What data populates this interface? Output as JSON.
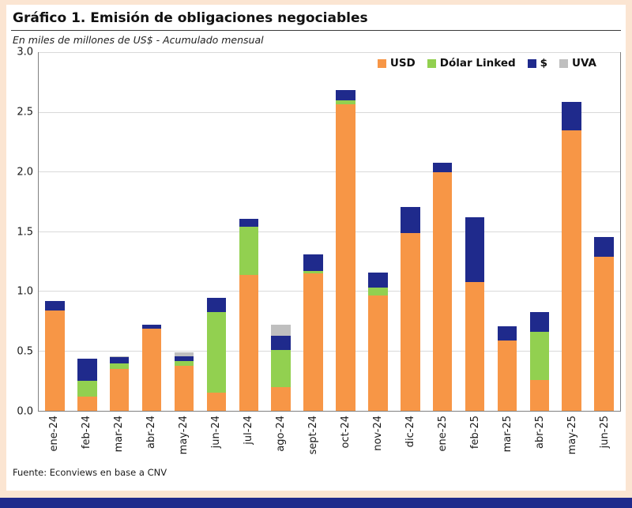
{
  "page": {
    "title": "Gráfico 1. Emisión de obligaciones negociables",
    "subtitle": "En miles de millones de US$ - Acumulado mensual",
    "source": "Fuente: Econviews en base a CNV"
  },
  "colors": {
    "frame": "#FBE5D2",
    "bottom_bar": "#1F2A8C",
    "gridline": "#D9D9D9",
    "plot_border": "#808080"
  },
  "chart_data": {
    "type": "bar",
    "stacked": true,
    "title": "Gráfico 1. Emisión de obligaciones negociables",
    "subtitle": "En miles de millones de US$ - Acumulado mensual",
    "categories": [
      "ene-24",
      "feb-24",
      "mar-24",
      "abr-24",
      "may-24",
      "jun-24",
      "jul-24",
      "ago-24",
      "sept-24",
      "oct-24",
      "nov-24",
      "dic-24",
      "ene-25",
      "feb-25",
      "mar-25",
      "abr-25",
      "may-25",
      "jun-25"
    ],
    "series": [
      {
        "name": "USD",
        "color": "#F79646",
        "values": [
          0.84,
          0.12,
          0.35,
          0.69,
          0.38,
          0.15,
          1.14,
          0.2,
          1.15,
          2.57,
          0.97,
          1.49,
          2.0,
          1.08,
          0.59,
          0.26,
          2.35,
          1.29
        ]
      },
      {
        "name": "Dólar Linked",
        "color": "#92D050",
        "values": [
          0.0,
          0.13,
          0.05,
          0.0,
          0.04,
          0.68,
          0.4,
          0.31,
          0.02,
          0.03,
          0.06,
          0.0,
          0.0,
          0.0,
          0.0,
          0.4,
          0.0,
          0.0
        ]
      },
      {
        "name": "$",
        "color": "#1F2A8C",
        "values": [
          0.08,
          0.19,
          0.05,
          0.03,
          0.04,
          0.12,
          0.07,
          0.12,
          0.14,
          0.09,
          0.13,
          0.22,
          0.08,
          0.54,
          0.12,
          0.17,
          0.24,
          0.17
        ]
      },
      {
        "name": "UVA",
        "color": "#BFBFBF",
        "values": [
          0.0,
          0.0,
          0.01,
          0.0,
          0.03,
          0.0,
          0.0,
          0.09,
          0.0,
          0.0,
          0.0,
          0.0,
          0.0,
          0.0,
          0.0,
          0.0,
          0.0,
          0.0
        ]
      }
    ],
    "ylim": [
      0,
      3.0
    ],
    "ytick_step": 0.5,
    "ytick_labels": [
      "0.0",
      "0.5",
      "1.0",
      "1.5",
      "2.0",
      "2.5",
      "3.0"
    ],
    "legend_position": "top-right",
    "legend_entries": [
      "USD",
      "Dólar Linked",
      "$",
      "UVA"
    ],
    "grid": true
  }
}
